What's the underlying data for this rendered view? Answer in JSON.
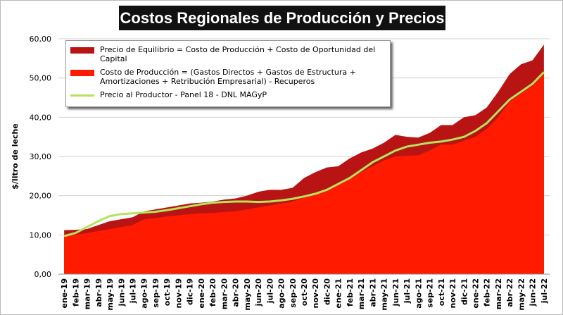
{
  "chart_data": {
    "type": "area",
    "title": "Costos Regionales de Producción y Precios",
    "y_label": "$/litro de leche",
    "categories": [
      "ene-19",
      "feb-19",
      "mar-19",
      "abr-19",
      "may-19",
      "jun-19",
      "jul-19",
      "ago-19",
      "sep-19",
      "oct-19",
      "nov-19",
      "dic-19",
      "ene-20",
      "feb-20",
      "mar-20",
      "abr-20",
      "may-20",
      "jun-20",
      "jul-20",
      "ago-20",
      "sep-20",
      "oct-20",
      "nov-20",
      "dic-20",
      "ene-21",
      "feb-21",
      "mar-21",
      "abr-21",
      "may-21",
      "jun-21",
      "jul-21",
      "ago-21",
      "sep-21",
      "oct-21",
      "nov-21",
      "dic-21",
      "ene-22",
      "feb-22",
      "mar-22",
      "abr-22",
      "may-22",
      "jun-22",
      "jul-22"
    ],
    "series": [
      {
        "name": "Precio de Equilibrio = Costo de Producción + Costo de Oportunidad del Capital",
        "type": "area",
        "color": "#b81414",
        "values": [
          11.2,
          11.3,
          11.5,
          12.5,
          13.5,
          14,
          14.5,
          16,
          16.5,
          17,
          17.5,
          18,
          18.2,
          18.5,
          19,
          19.3,
          20,
          21,
          21.5,
          21.5,
          22,
          24.5,
          26,
          27.2,
          27.5,
          29.5,
          31,
          32,
          33.5,
          35.5,
          35,
          34.8,
          36,
          38,
          38,
          40,
          40.5,
          42.5,
          46.5,
          51,
          53.5,
          54.5,
          58.5
        ]
      },
      {
        "name": "Costo de Producción = (Gastos Directos + Gastos de Estructura + Amortizaciones + Retribución Empresarial) - Recuperos",
        "type": "area",
        "color": "#ff1a00",
        "values": [
          9.8,
          10,
          10.5,
          11,
          11.5,
          12,
          12.5,
          14,
          14.3,
          14.7,
          15,
          15.3,
          15.5,
          15.6,
          15.8,
          16,
          16.5,
          17,
          17.5,
          18,
          18.5,
          19.5,
          20.5,
          21.5,
          23,
          24.5,
          26,
          27.5,
          29,
          30,
          30.2,
          30.3,
          31.5,
          33,
          33,
          34,
          35,
          37,
          40,
          44,
          46,
          48,
          51
        ]
      },
      {
        "name": "Precio al Productor - Panel 18 - DNL MAGyP",
        "type": "line",
        "color": "#b5e35a",
        "values": [
          9.7,
          10.5,
          12,
          13.5,
          14.8,
          15.3,
          15.5,
          15.7,
          15.9,
          16.3,
          16.8,
          17.3,
          17.8,
          18.2,
          18.4,
          18.5,
          18.5,
          18.4,
          18.5,
          18.8,
          19.2,
          19.8,
          20.5,
          21.5,
          23,
          24.5,
          26.5,
          28.5,
          30,
          31.5,
          32.5,
          33,
          33.5,
          33.8,
          34.3,
          35,
          36.5,
          38.5,
          41.5,
          44.5,
          46.5,
          48.5,
          51.5
        ]
      }
    ],
    "ylim": [
      0,
      60
    ],
    "yticks": [
      {
        "value": 0,
        "label": "0,00"
      },
      {
        "value": 10,
        "label": "10,00"
      },
      {
        "value": 20,
        "label": "20,00"
      },
      {
        "value": 30,
        "label": "30,00"
      },
      {
        "value": 40,
        "label": "40,00"
      },
      {
        "value": 50,
        "label": "50,00"
      },
      {
        "value": 60,
        "label": "60,00"
      }
    ],
    "grid": true
  }
}
